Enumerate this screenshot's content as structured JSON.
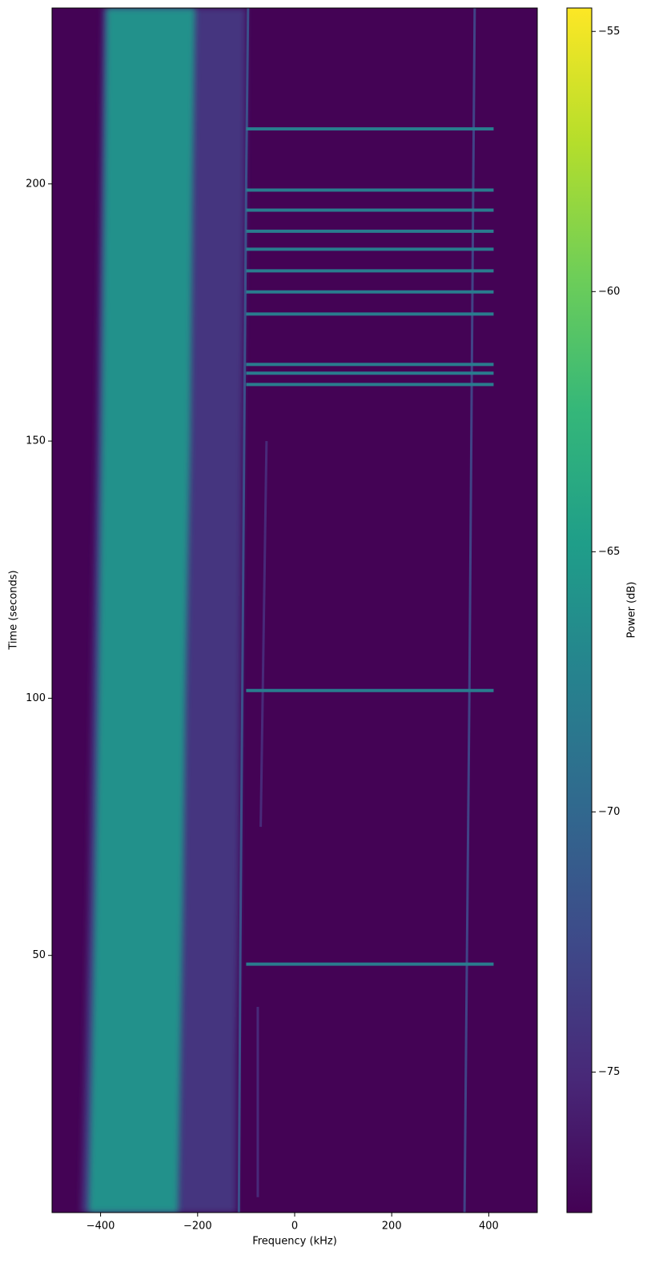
{
  "chart_data": {
    "type": "spectrogram",
    "xlabel": "Frequency (kHz)",
    "ylabel": "Time (seconds)",
    "colorbar_label": "Power (dB)",
    "xlim": [
      -500,
      500
    ],
    "ylim": [
      0,
      234.2
    ],
    "xticks": [
      {
        "value": -400,
        "label": "−400"
      },
      {
        "value": -200,
        "label": "−200"
      },
      0,
      200,
      400
    ],
    "yticks": [
      50,
      100,
      150,
      200
    ],
    "clim": [
      -77.7,
      -54.55
    ],
    "cticks": [
      {
        "value": -75,
        "label": "−75"
      },
      {
        "value": -70,
        "label": "−70"
      },
      {
        "value": -65,
        "label": "−65"
      },
      {
        "value": -60,
        "label": "−60"
      },
      {
        "value": -55,
        "label": "−55"
      }
    ],
    "colormap": [
      "#440154",
      "#482878",
      "#3e4989",
      "#31688e",
      "#26828e",
      "#1f9e89",
      "#35b779",
      "#6ece58",
      "#b5de2b",
      "#fde725"
    ],
    "background": -77.6,
    "noise_bands": [
      {
        "times": [
          0,
          30,
          60,
          100,
          150,
          200,
          234.2
        ],
        "low": [
          -440,
          -432,
          -425,
          -418,
          -408,
          -400,
          -395
        ],
        "high": [
          -120,
          -120,
          -115,
          -112,
          -108,
          -102,
          -100
        ],
        "value": -74
      },
      {
        "times": [
          0,
          30,
          60,
          100,
          150,
          200,
          234.2
        ],
        "low": [
          -425,
          -418,
          -412,
          -405,
          -398,
          -392,
          -388
        ],
        "high": [
          -240,
          -235,
          -230,
          -225,
          -215,
          -210,
          -205
        ],
        "value": -66
      }
    ],
    "carriers": [
      {
        "times": [
          0,
          50,
          100,
          150,
          200,
          234.2
        ],
        "freq": [
          -115,
          -112,
          -108,
          -104,
          -100,
          -96
        ],
        "value": -72
      },
      {
        "times": [
          0,
          50,
          100,
          150,
          200,
          234.2
        ],
        "freq": [
          350,
          355,
          360,
          364,
          368,
          371
        ],
        "value": -73
      },
      {
        "times": [
          3,
          40
        ],
        "freq": [
          -76,
          -76
        ],
        "value": -75
      },
      {
        "times": [
          75,
          150
        ],
        "freq": [
          -70,
          -58
        ],
        "value": -75
      }
    ],
    "bursts": {
      "times": [
        210.7,
        198.8,
        194.9,
        190.8,
        187.3,
        183.1,
        179.0,
        174.7,
        164.9,
        163.2,
        161.0,
        101.5,
        48.3
      ],
      "low": -100,
      "high": 410,
      "value": -68
    }
  }
}
